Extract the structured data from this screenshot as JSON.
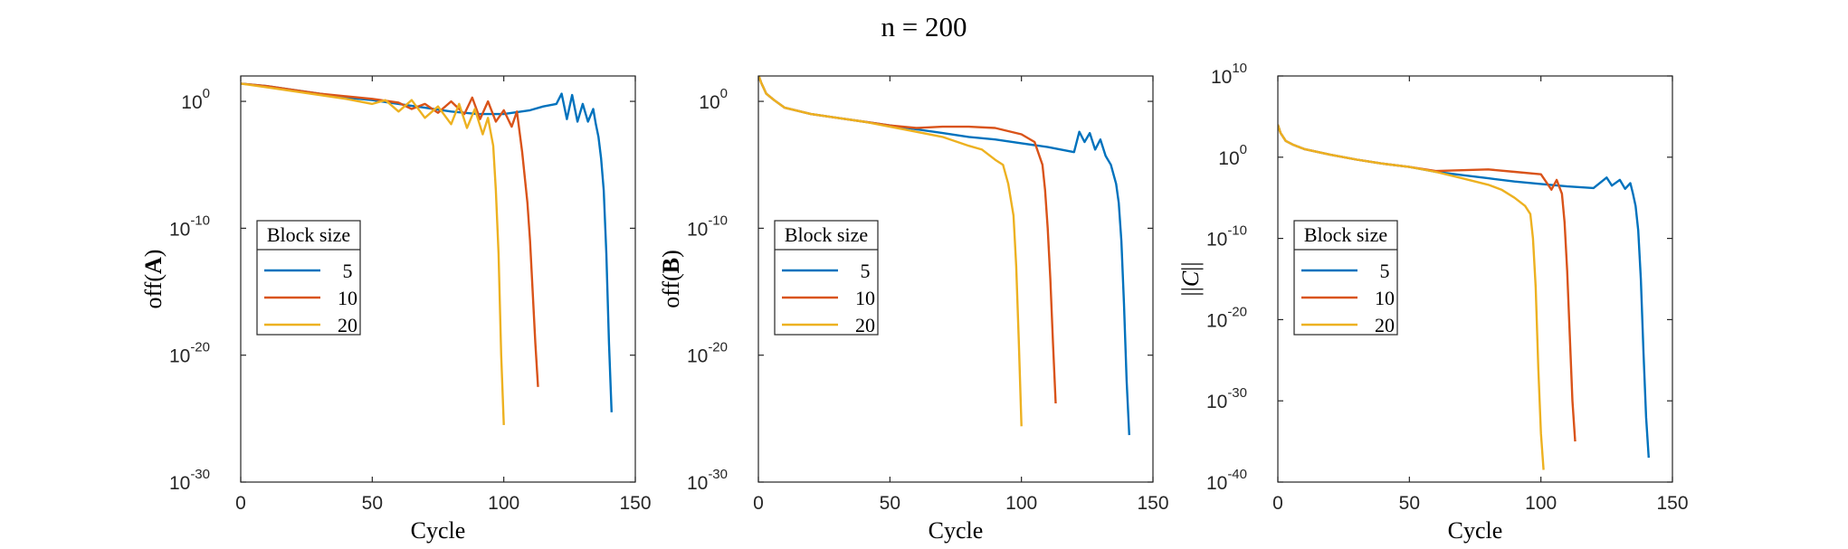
{
  "figure_title": "n = 200",
  "chart_data": [
    {
      "type": "line",
      "id": "A",
      "ylabel_prefix": "off(",
      "ylabel_symbol": "A",
      "ylabel_suffix": ")",
      "xlabel": "Cycle",
      "xlim": [
        0,
        150
      ],
      "xticks": [
        "0",
        "50",
        "100",
        "150"
      ],
      "yscale": "log",
      "ylim_exp": [
        -30,
        2
      ],
      "yticks_exp": [
        "-30",
        "-20",
        "-10",
        "0"
      ],
      "legend_title": "Block size",
      "series": [
        {
          "name": "5",
          "color": "#0072BD",
          "x": [
            0,
            10,
            20,
            30,
            40,
            50,
            60,
            70,
            80,
            90,
            100,
            110,
            115,
            120,
            122,
            124,
            126,
            128,
            130,
            132,
            134,
            135,
            136,
            137,
            138,
            139,
            140,
            141
          ],
          "y": [
            1.4,
            1.2,
            0.9,
            0.6,
            0.3,
            0.1,
            -0.2,
            -0.5,
            -0.8,
            -1.0,
            -1.0,
            -0.7,
            -0.4,
            -0.2,
            0.6,
            -1.4,
            0.5,
            -1.6,
            -0.2,
            -1.6,
            -0.6,
            -1.8,
            -2.8,
            -4.5,
            -7,
            -12,
            -19,
            -24.5
          ]
        },
        {
          "name": "10",
          "color": "#D95319",
          "x": [
            0,
            10,
            20,
            30,
            40,
            50,
            60,
            65,
            70,
            75,
            80,
            85,
            88,
            91,
            94,
            97,
            100,
            103,
            105,
            107,
            108,
            109,
            110,
            111,
            112,
            113
          ],
          "y": [
            1.4,
            1.2,
            0.9,
            0.6,
            0.4,
            0.2,
            -0.1,
            -0.6,
            -0.2,
            -0.9,
            0.0,
            -1.0,
            0.3,
            -1.4,
            0.0,
            -1.6,
            -0.7,
            -2.0,
            -0.8,
            -4.0,
            -6,
            -8,
            -11,
            -15,
            -19,
            -22.5
          ]
        },
        {
          "name": "20",
          "color": "#EDB120",
          "x": [
            0,
            10,
            20,
            30,
            40,
            50,
            55,
            60,
            65,
            70,
            75,
            80,
            83,
            86,
            89,
            92,
            94,
            96,
            97,
            98,
            99,
            100
          ],
          "y": [
            1.4,
            1.1,
            0.8,
            0.5,
            0.2,
            -0.2,
            0.1,
            -0.8,
            0.1,
            -1.3,
            -0.4,
            -1.8,
            -0.2,
            -2.1,
            -0.6,
            -2.6,
            -1.3,
            -3.5,
            -7,
            -12,
            -20,
            -25.5
          ]
        }
      ]
    },
    {
      "type": "line",
      "id": "B",
      "ylabel_prefix": "off(",
      "ylabel_symbol": "B",
      "ylabel_suffix": ")",
      "xlabel": "Cycle",
      "xlim": [
        0,
        150
      ],
      "xticks": [
        "0",
        "50",
        "100",
        "150"
      ],
      "yscale": "log",
      "ylim_exp": [
        -30,
        2
      ],
      "yticks_exp": [
        "-30",
        "-20",
        "-10",
        "0"
      ],
      "legend_title": "Block size",
      "series": [
        {
          "name": "5",
          "color": "#0072BD",
          "x": [
            0,
            1,
            3,
            6,
            10,
            20,
            30,
            40,
            50,
            60,
            70,
            80,
            90,
            100,
            110,
            120,
            122,
            124,
            126,
            128,
            130,
            132,
            134,
            136,
            137,
            138,
            139,
            140,
            141
          ],
          "y": [
            2.1,
            1.5,
            0.6,
            0.1,
            -0.5,
            -1.0,
            -1.3,
            -1.6,
            -1.9,
            -2.2,
            -2.5,
            -2.8,
            -3.0,
            -3.3,
            -3.6,
            -4.0,
            -2.4,
            -3.2,
            -2.5,
            -3.8,
            -3.0,
            -4.3,
            -5.0,
            -6.5,
            -8,
            -11,
            -16,
            -22,
            -26.3
          ]
        },
        {
          "name": "10",
          "color": "#D95319",
          "x": [
            0,
            1,
            3,
            6,
            10,
            20,
            30,
            40,
            50,
            60,
            70,
            80,
            90,
            100,
            105,
            108,
            109,
            110,
            111,
            112,
            113
          ],
          "y": [
            2.1,
            1.5,
            0.6,
            0.1,
            -0.5,
            -1.0,
            -1.3,
            -1.6,
            -1.9,
            -2.1,
            -2.0,
            -2.0,
            -2.1,
            -2.6,
            -3.2,
            -5,
            -7,
            -10,
            -14,
            -19,
            -23.8
          ]
        },
        {
          "name": "20",
          "color": "#EDB120",
          "x": [
            0,
            1,
            3,
            6,
            10,
            20,
            30,
            40,
            50,
            60,
            70,
            80,
            85,
            90,
            93,
            95,
            97,
            98,
            99,
            100
          ],
          "y": [
            2.1,
            1.5,
            0.6,
            0.1,
            -0.5,
            -1.0,
            -1.3,
            -1.6,
            -2.0,
            -2.4,
            -2.8,
            -3.5,
            -3.8,
            -4.6,
            -5.0,
            -6.5,
            -9,
            -13,
            -19,
            -25.6
          ]
        }
      ]
    },
    {
      "type": "line",
      "id": "C",
      "ylabel_prefix": "||",
      "ylabel_symbol": "C",
      "ylabel_suffix": "||",
      "xlabel": "Cycle",
      "xlim": [
        0,
        150
      ],
      "xticks": [
        "0",
        "50",
        "100",
        "150"
      ],
      "yscale": "log",
      "ylim_exp": [
        -40,
        10
      ],
      "yticks_exp": [
        "-40",
        "-30",
        "-20",
        "-10",
        "0",
        "10"
      ],
      "legend_title": "Block size",
      "series": [
        {
          "name": "5",
          "color": "#0072BD",
          "x": [
            0,
            1,
            3,
            6,
            10,
            20,
            30,
            40,
            50,
            60,
            70,
            80,
            90,
            100,
            110,
            120,
            125,
            127,
            130,
            132,
            134,
            135,
            136,
            137,
            138,
            139,
            140,
            141
          ],
          "y": [
            4.0,
            3.0,
            2.0,
            1.5,
            1.0,
            0.3,
            -0.3,
            -0.8,
            -1.2,
            -1.8,
            -2.2,
            -2.6,
            -3.0,
            -3.3,
            -3.6,
            -3.8,
            -2.5,
            -3.5,
            -2.8,
            -3.9,
            -3.2,
            -4.5,
            -6,
            -9,
            -15,
            -24,
            -32,
            -37
          ]
        },
        {
          "name": "10",
          "color": "#D95319",
          "x": [
            0,
            1,
            3,
            6,
            10,
            20,
            30,
            40,
            50,
            60,
            70,
            80,
            90,
            100,
            104,
            106,
            108,
            109,
            110,
            111,
            112,
            113
          ],
          "y": [
            4.0,
            3.0,
            2.0,
            1.5,
            1.0,
            0.3,
            -0.3,
            -0.8,
            -1.2,
            -1.7,
            -1.6,
            -1.5,
            -1.8,
            -2.1,
            -4.0,
            -2.8,
            -4.5,
            -8,
            -14,
            -22,
            -30,
            -35
          ]
        },
        {
          "name": "20",
          "color": "#EDB120",
          "x": [
            0,
            1,
            3,
            6,
            10,
            20,
            30,
            40,
            50,
            60,
            70,
            80,
            85,
            90,
            94,
            96,
            97,
            98,
            99,
            100,
            101
          ],
          "y": [
            4.0,
            3.0,
            2.0,
            1.5,
            1.0,
            0.3,
            -0.3,
            -0.8,
            -1.2,
            -1.8,
            -2.6,
            -3.4,
            -4.0,
            -5.0,
            -6.0,
            -7.0,
            -10,
            -16,
            -26,
            -34,
            -38.5
          ]
        }
      ]
    }
  ]
}
